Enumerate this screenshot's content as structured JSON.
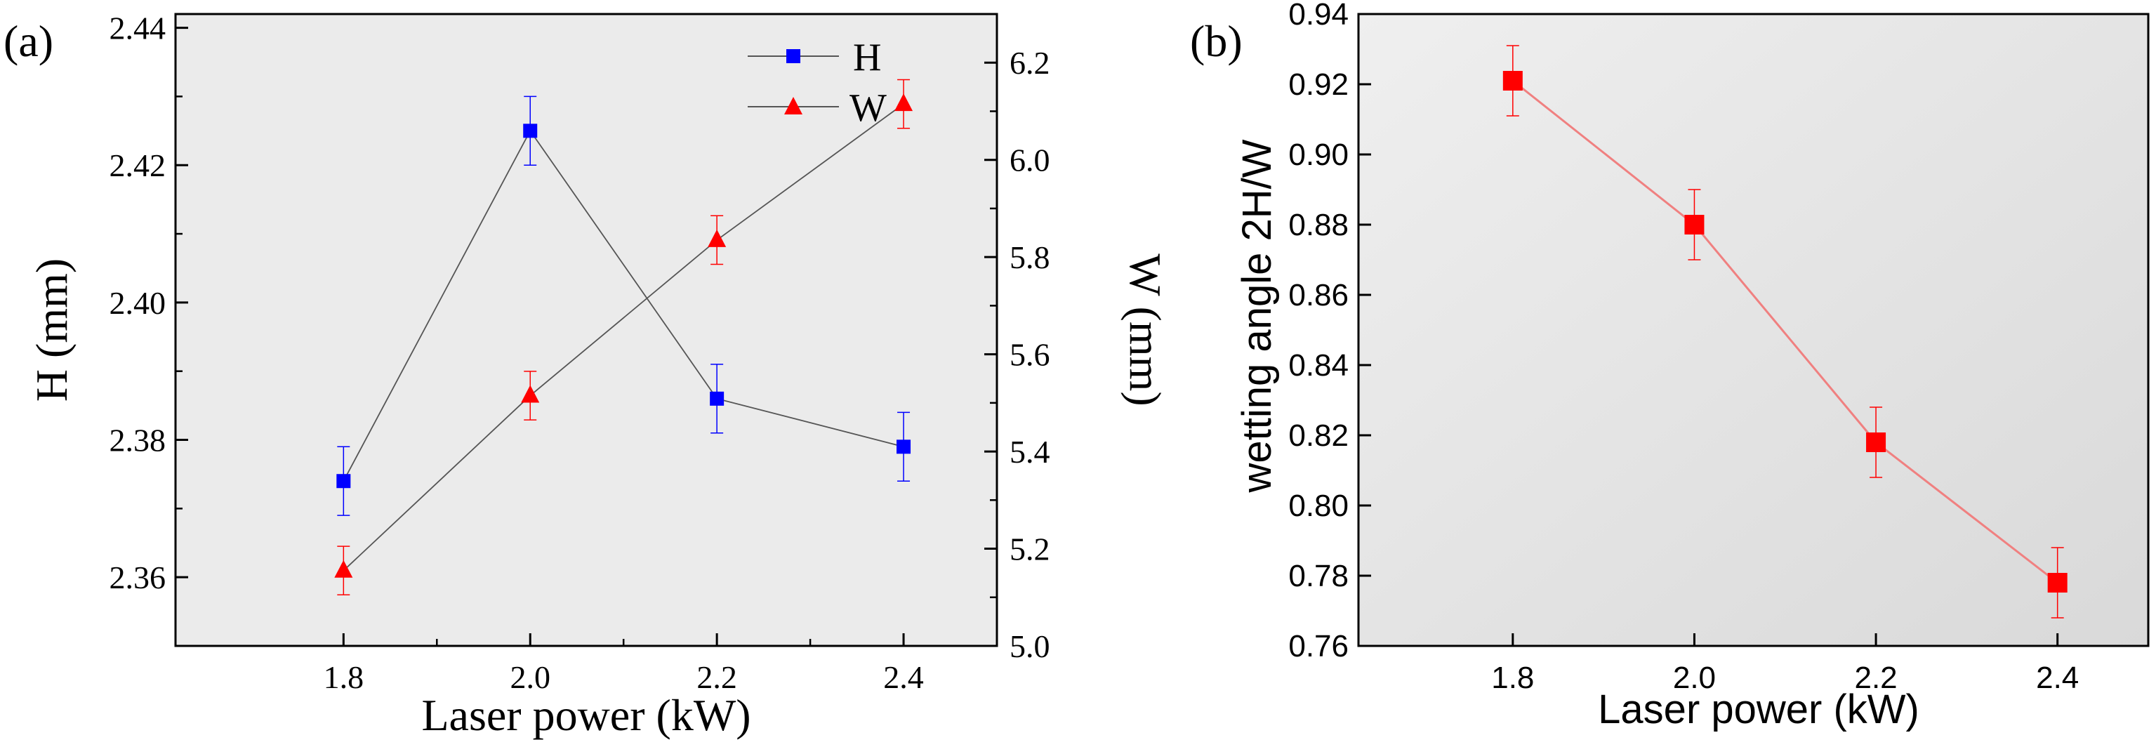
{
  "chart_data": [
    {
      "panel_label": "(a)",
      "type": "line",
      "xlabel": "Laser power (kW)",
      "x": [
        1.8,
        2.0,
        2.2,
        2.4
      ],
      "xlim": [
        1.62,
        2.5
      ],
      "xticks": [
        1.8,
        2.0,
        2.2,
        2.4
      ],
      "xtick_labels": [
        "1.8",
        "2.0",
        "2.2",
        "2.4"
      ],
      "xminor": [
        1.9,
        2.1,
        2.3
      ],
      "ylabel_left": "H (mm)",
      "ylim_left": [
        2.35,
        2.442
      ],
      "yticks_left": [
        2.36,
        2.38,
        2.4,
        2.42,
        2.44
      ],
      "ytick_labels_left": [
        "2.36",
        "2.38",
        "2.40",
        "2.42",
        "2.44"
      ],
      "ylabel_right": "W (mm)",
      "ylim_right": [
        5.0,
        6.3
      ],
      "yticks_right": [
        5.0,
        5.2,
        5.4,
        5.6,
        5.8,
        6.0,
        6.2
      ],
      "ytick_labels_right": [
        "5.0",
        "5.2",
        "5.4",
        "5.6",
        "5.8",
        "6.0",
        "6.2"
      ],
      "legend_position": "top-right",
      "series": [
        {
          "name": "H",
          "axis": "left",
          "marker": "square",
          "color": "#0000ff",
          "values": [
            2.374,
            2.425,
            2.386,
            2.379
          ],
          "errors": [
            0.005,
            0.005,
            0.005,
            0.005
          ]
        },
        {
          "name": "W",
          "axis": "right",
          "marker": "triangle",
          "color": "#ff0000",
          "values": [
            5.155,
            5.515,
            5.835,
            6.115
          ],
          "errors": [
            0.05,
            0.05,
            0.05,
            0.05
          ]
        }
      ],
      "line_color": "#555555",
      "background": "#ebebeb"
    },
    {
      "panel_label": "(b)",
      "type": "line",
      "xlabel": "Laser power (kW)",
      "ylabel": "wetting angle  2H/W",
      "x": [
        1.8,
        2.0,
        2.2,
        2.4
      ],
      "xlim": [
        1.63,
        2.5
      ],
      "xticks": [
        1.8,
        2.0,
        2.2,
        2.4
      ],
      "xtick_labels": [
        "1.8",
        "2.0",
        "2.2",
        "2.4"
      ],
      "ylim": [
        0.76,
        0.94
      ],
      "yticks": [
        0.76,
        0.78,
        0.8,
        0.82,
        0.84,
        0.86,
        0.88,
        0.9,
        0.92,
        0.94
      ],
      "ytick_labels": [
        "0.76",
        "0.78",
        "0.80",
        "0.82",
        "0.84",
        "0.86",
        "0.88",
        "0.90",
        "0.92",
        "0.94"
      ],
      "series": [
        {
          "name": "2H/W",
          "marker": "square",
          "color": "#ff0000",
          "line_color": "#f08080",
          "values": [
            0.921,
            0.88,
            0.818,
            0.778
          ],
          "errors": [
            0.01,
            0.01,
            0.01,
            0.01
          ]
        }
      ]
    }
  ]
}
